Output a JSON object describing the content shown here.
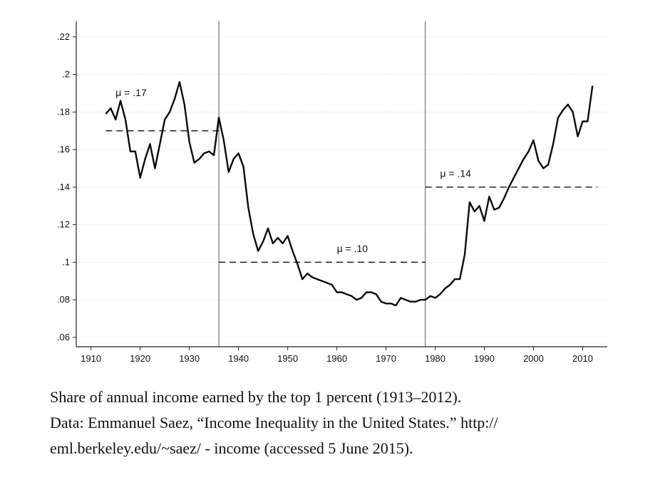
{
  "chart_data": {
    "type": "line",
    "title": "",
    "xlabel": "",
    "ylabel": "",
    "xlim": [
      1907,
      2015
    ],
    "ylim": [
      0.055,
      0.226
    ],
    "x_ticks": [
      1910,
      1920,
      1930,
      1940,
      1950,
      1960,
      1970,
      1980,
      1990,
      2000,
      2010
    ],
    "x_tick_labels": [
      "1910",
      "1920",
      "1930",
      "1940",
      "1950",
      "1960",
      "1970",
      "1980",
      "1990",
      "2000",
      "2010"
    ],
    "y_ticks": [
      0.06,
      0.08,
      0.1,
      0.12,
      0.14,
      0.16,
      0.18,
      0.2,
      0.22
    ],
    "y_tick_labels": [
      ".06",
      ".08",
      ".1",
      ".12",
      ".14",
      ".16",
      ".18",
      ".2",
      ".22"
    ],
    "grid": true,
    "series": [
      {
        "name": "Top 1 percent income share",
        "x": [
          1913,
          1914,
          1915,
          1916,
          1917,
          1918,
          1919,
          1920,
          1921,
          1922,
          1923,
          1924,
          1925,
          1926,
          1927,
          1928,
          1929,
          1930,
          1931,
          1932,
          1933,
          1934,
          1935,
          1936,
          1937,
          1938,
          1939,
          1940,
          1941,
          1942,
          1943,
          1944,
          1945,
          1946,
          1947,
          1948,
          1949,
          1950,
          1951,
          1952,
          1953,
          1954,
          1955,
          1956,
          1957,
          1958,
          1959,
          1960,
          1961,
          1962,
          1963,
          1964,
          1965,
          1966,
          1967,
          1968,
          1969,
          1970,
          1971,
          1972,
          1973,
          1974,
          1975,
          1976,
          1977,
          1978,
          1979,
          1980,
          1981,
          1982,
          1983,
          1984,
          1985,
          1986,
          1987,
          1988,
          1989,
          1990,
          1991,
          1992,
          1993,
          1994,
          1995,
          1996,
          1997,
          1998,
          1999,
          2000,
          2001,
          2002,
          2003,
          2004,
          2005,
          2006,
          2007,
          2008,
          2009,
          2010,
          2011,
          2012
        ],
        "values": [
          0.179,
          0.182,
          0.176,
          0.186,
          0.176,
          0.159,
          0.159,
          0.145,
          0.155,
          0.163,
          0.15,
          0.163,
          0.176,
          0.18,
          0.187,
          0.196,
          0.184,
          0.164,
          0.153,
          0.155,
          0.158,
          0.159,
          0.157,
          0.177,
          0.165,
          0.148,
          0.155,
          0.158,
          0.151,
          0.129,
          0.115,
          0.106,
          0.111,
          0.118,
          0.11,
          0.113,
          0.11,
          0.114,
          0.106,
          0.099,
          0.091,
          0.094,
          0.092,
          0.091,
          0.09,
          0.089,
          0.088,
          0.084,
          0.084,
          0.083,
          0.082,
          0.08,
          0.081,
          0.084,
          0.084,
          0.083,
          0.079,
          0.078,
          0.078,
          0.077,
          0.081,
          0.08,
          0.079,
          0.079,
          0.08,
          0.08,
          0.082,
          0.081,
          0.083,
          0.086,
          0.088,
          0.091,
          0.091,
          0.104,
          0.132,
          0.127,
          0.13,
          0.122,
          0.135,
          0.128,
          0.129,
          0.134,
          0.14,
          0.145,
          0.15,
          0.155,
          0.159,
          0.165,
          0.154,
          0.15,
          0.152,
          0.163,
          0.177,
          0.181,
          0.184,
          0.18,
          0.167,
          0.175,
          0.175,
          0.194
        ]
      }
    ],
    "vertical_lines": [
      1936,
      1978
    ],
    "mean_lines": [
      {
        "label": "μ = .17",
        "value": 0.17,
        "x_start": 1913,
        "x_end": 1936,
        "label_x": 1915,
        "label_y": 0.1885
      },
      {
        "label": "μ = .10",
        "value": 0.1,
        "x_start": 1936,
        "x_end": 1978,
        "label_x": 1960,
        "label_y": 0.1055
      },
      {
        "label": "μ = .14",
        "value": 0.14,
        "x_start": 1978,
        "x_end": 2013,
        "label_x": 1981,
        "label_y": 0.1455
      }
    ]
  },
  "caption": {
    "line1": "Share of annual income earned by the top 1 percent (1913–2012).",
    "line2": "Data: Emmanuel Saez, “Income Inequality in the United States.” http://",
    "line3": "eml.berkeley.edu/~saez/ - income (accessed 5 June 2015)."
  }
}
